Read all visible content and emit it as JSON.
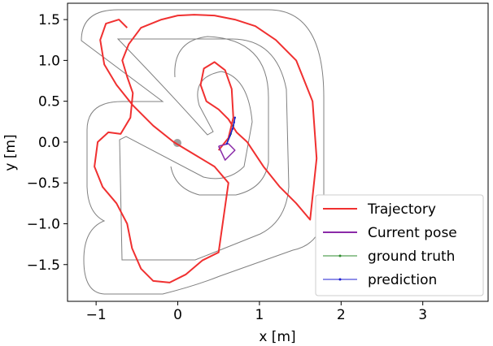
{
  "chart_data": {
    "type": "line",
    "xlabel": "x [m]",
    "ylabel": "y [m]",
    "xlim": [
      -1.35,
      3.8
    ],
    "ylim": [
      -1.95,
      1.7
    ],
    "xticks": [
      -1,
      0,
      1,
      2,
      3
    ],
    "yticks": [
      -1.5,
      -1.0,
      -0.5,
      0.0,
      0.5,
      1.0,
      1.5
    ],
    "xtick_labels": [
      "−1",
      "0",
      "1",
      "2",
      "3"
    ],
    "ytick_labels": [
      "−1.5",
      "−1.0",
      "−0.5",
      "0.0",
      "0.5",
      "1.0",
      "1.5"
    ],
    "grid": false,
    "legend_position": "bottom-right",
    "colors": {
      "trajectory": "#f03030",
      "current_pose": "#8a2aa8",
      "ground_truth": "#2e8b2e",
      "prediction": "#1f1fd0",
      "track": "#808080",
      "origin_marker": "#a0a0a0"
    },
    "legend": [
      {
        "label": "Trajectory",
        "key": "trajectory"
      },
      {
        "label": "Current pose",
        "key": "current_pose"
      },
      {
        "label": "ground truth",
        "key": "ground_truth"
      },
      {
        "label": "prediction",
        "key": "prediction"
      }
    ],
    "series": [
      {
        "key": "trajectory",
        "x": [
          0.5,
          0.62,
          0.68,
          0.66,
          0.58,
          0.45,
          0.32,
          0.28,
          0.35,
          0.5,
          0.62,
          0.72,
          0.85,
          1.05,
          1.25,
          1.45,
          1.62,
          1.7,
          1.65,
          1.45,
          1.2,
          0.95,
          0.7,
          0.45,
          0.2,
          0.0,
          -0.2,
          -0.45,
          -0.6,
          -0.68,
          -0.62,
          -0.55,
          -0.58,
          -0.7,
          -0.85,
          -0.98,
          -1.02,
          -0.92,
          -0.75,
          -0.62,
          -0.56,
          -0.45,
          -0.3,
          -0.1,
          0.1,
          0.3,
          0.5,
          0.62,
          0.45,
          0.2,
          -0.05,
          -0.3,
          -0.55,
          -0.75,
          -0.9,
          -0.95,
          -0.88,
          -0.72,
          -0.62
        ],
        "y": [
          -0.1,
          0.05,
          0.3,
          0.65,
          0.88,
          0.98,
          0.9,
          0.7,
          0.5,
          0.4,
          0.28,
          0.12,
          0.0,
          -0.3,
          -0.55,
          -0.75,
          -0.95,
          -0.2,
          0.5,
          1.0,
          1.25,
          1.42,
          1.5,
          1.55,
          1.56,
          1.55,
          1.5,
          1.4,
          1.2,
          1.0,
          0.8,
          0.6,
          0.3,
          0.1,
          0.12,
          0.0,
          -0.3,
          -0.55,
          -0.75,
          -1.0,
          -1.3,
          -1.55,
          -1.7,
          -1.72,
          -1.62,
          -1.45,
          -1.35,
          -0.5,
          -0.3,
          -0.15,
          0.0,
          0.2,
          0.45,
          0.7,
          0.95,
          1.25,
          1.45,
          1.5,
          1.4
        ]
      },
      {
        "key": "current_pose",
        "x": [
          0.5,
          0.62,
          0.7,
          0.58,
          0.5
        ],
        "y": [
          -0.05,
          -0.02,
          -0.1,
          -0.22,
          -0.05
        ]
      },
      {
        "key": "ground_truth",
        "x": [
          0.6,
          0.65,
          0.68,
          0.7
        ],
        "y": [
          -0.02,
          0.1,
          0.2,
          0.3
        ]
      },
      {
        "key": "prediction",
        "x": [
          0.6,
          0.64,
          0.67,
          0.69,
          0.7
        ],
        "y": [
          -0.02,
          0.08,
          0.16,
          0.24,
          0.3
        ]
      }
    ]
  }
}
